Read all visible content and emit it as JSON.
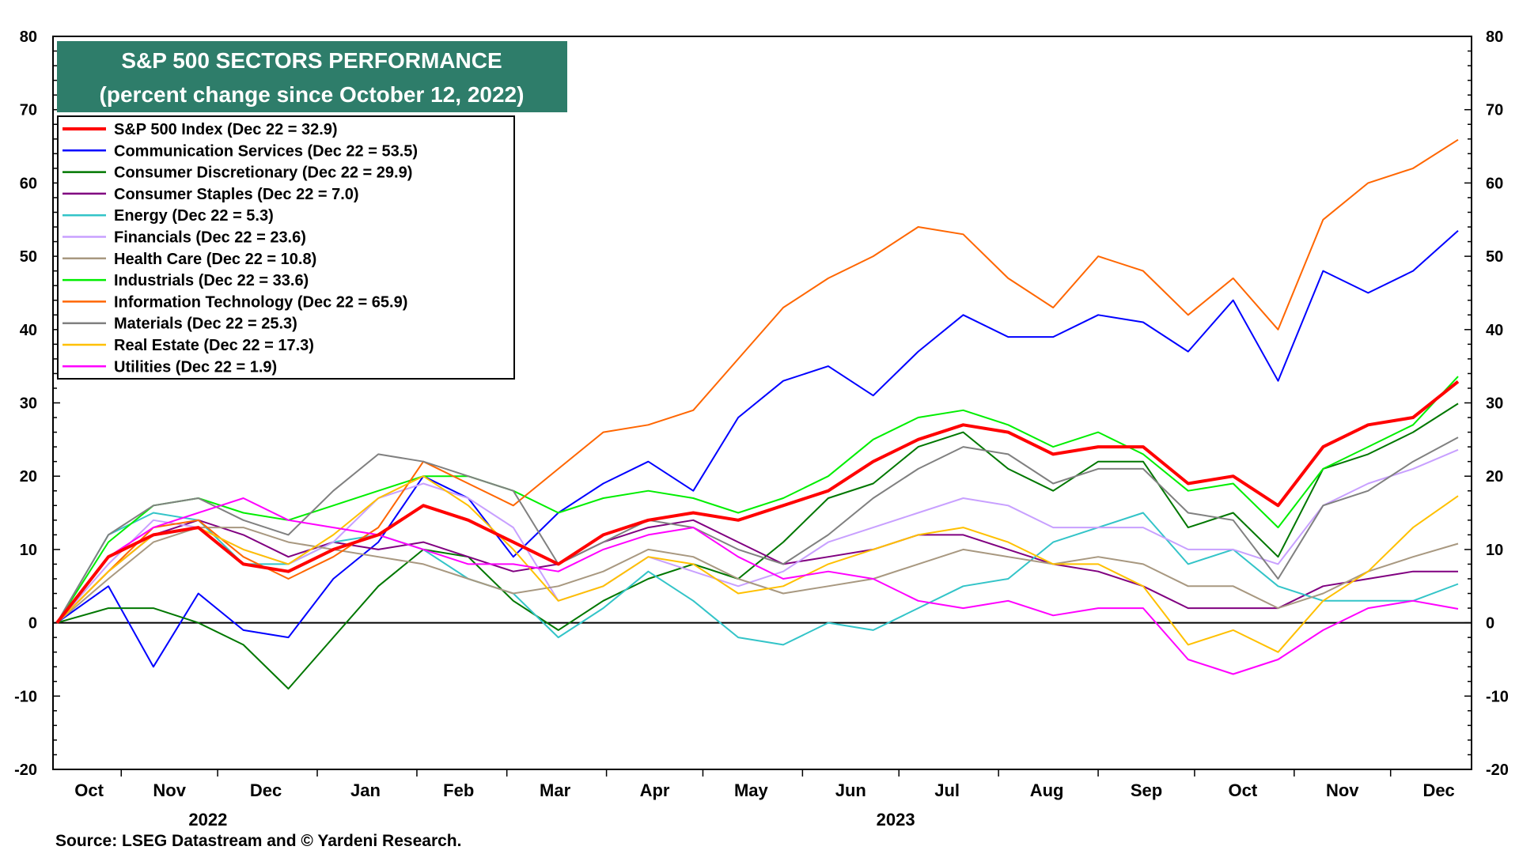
{
  "chart_data": {
    "type": "line",
    "title": "S&P 500 SECTORS PERFORMANCE",
    "subtitle": "(percent change since October 12, 2022)",
    "ylim": [
      -20,
      80
    ],
    "yticks": [
      -20,
      -10,
      0,
      10,
      20,
      30,
      40,
      50,
      60,
      70,
      80
    ],
    "grid": false,
    "legend_position": "top-left",
    "x_axis": {
      "type": "date",
      "start": "2022-10-12",
      "end": "2023-12-22",
      "month_labels": [
        {
          "label": "Oct",
          "date": "2022-10-22"
        },
        {
          "label": "Nov",
          "date": "2022-11-16"
        },
        {
          "label": "Dec",
          "date": "2022-12-16"
        },
        {
          "label": "Jan",
          "date": "2023-01-16"
        },
        {
          "label": "Feb",
          "date": "2023-02-14"
        },
        {
          "label": "Mar",
          "date": "2023-03-16"
        },
        {
          "label": "Apr",
          "date": "2023-04-16"
        },
        {
          "label": "May",
          "date": "2023-05-16"
        },
        {
          "label": "Jun",
          "date": "2023-06-16"
        },
        {
          "label": "Jul",
          "date": "2023-07-16"
        },
        {
          "label": "Aug",
          "date": "2023-08-16"
        },
        {
          "label": "Sep",
          "date": "2023-09-16"
        },
        {
          "label": "Oct",
          "date": "2023-10-16"
        },
        {
          "label": "Nov",
          "date": "2023-11-16"
        },
        {
          "label": "Dec",
          "date": "2023-12-16"
        }
      ],
      "month_boundaries": [
        "2022-11-01",
        "2022-12-01",
        "2023-01-01",
        "2023-02-01",
        "2023-03-01",
        "2023-04-01",
        "2023-05-01",
        "2023-06-01",
        "2023-07-01",
        "2023-08-01",
        "2023-09-01",
        "2023-10-01",
        "2023-11-01",
        "2023-12-01"
      ],
      "year_labels": [
        {
          "label": "2022",
          "date": "2022-11-28"
        },
        {
          "label": "2023",
          "date": "2023-06-30"
        }
      ]
    },
    "x_dates": [
      "2022-10-12",
      "2022-10-28",
      "2022-11-11",
      "2022-11-25",
      "2022-12-09",
      "2022-12-23",
      "2023-01-06",
      "2023-01-20",
      "2023-02-03",
      "2023-02-17",
      "2023-03-03",
      "2023-03-17",
      "2023-03-31",
      "2023-04-14",
      "2023-04-28",
      "2023-05-12",
      "2023-05-26",
      "2023-06-09",
      "2023-06-23",
      "2023-07-07",
      "2023-07-21",
      "2023-08-04",
      "2023-08-18",
      "2023-09-01",
      "2023-09-15",
      "2023-09-29",
      "2023-10-13",
      "2023-10-27",
      "2023-11-10",
      "2023-11-24",
      "2023-12-08",
      "2023-12-22"
    ],
    "series": [
      {
        "name": "S&P 500 Index (Dec 22 = 32.9)",
        "color": "#ff0000",
        "width": 4,
        "values": [
          0,
          9,
          12,
          13,
          8,
          7,
          10,
          12,
          16,
          14,
          11,
          8,
          12,
          14,
          15,
          14,
          16,
          18,
          22,
          25,
          27,
          26,
          23,
          24,
          24,
          19,
          20,
          16,
          24,
          27,
          28,
          32.9
        ]
      },
      {
        "name": "Communication Services (Dec 22 = 53.5)",
        "color": "#0000ff",
        "width": 2,
        "values": [
          0,
          5,
          -6,
          4,
          -1,
          -2,
          6,
          11,
          20,
          17,
          9,
          15,
          19,
          22,
          18,
          28,
          33,
          35,
          31,
          37,
          42,
          39,
          39,
          42,
          41,
          37,
          44,
          33,
          48,
          45,
          48,
          53.5
        ]
      },
      {
        "name": "Consumer Discretionary (Dec 22 = 29.9)",
        "color": "#007700",
        "width": 2,
        "values": [
          0,
          2,
          2,
          0,
          -3,
          -9,
          -2,
          5,
          10,
          9,
          3,
          -1,
          3,
          6,
          8,
          6,
          11,
          17,
          19,
          24,
          26,
          21,
          18,
          22,
          22,
          13,
          15,
          9,
          21,
          23,
          26,
          29.9
        ]
      },
      {
        "name": "Consumer Staples (Dec 22 = 7.0)",
        "color": "#800080",
        "width": 2,
        "values": [
          0,
          7,
          12,
          14,
          12,
          9,
          11,
          10,
          11,
          9,
          7,
          8,
          11,
          13,
          14,
          11,
          8,
          9,
          10,
          12,
          12,
          10,
          8,
          7,
          5,
          2,
          2,
          2,
          5,
          6,
          7,
          7.0
        ]
      },
      {
        "name": "Energy (Dec 22 = 5.3)",
        "color": "#33c4c8",
        "width": 2,
        "values": [
          0,
          12,
          15,
          14,
          8,
          8,
          11,
          12,
          10,
          6,
          4,
          -2,
          2,
          7,
          3,
          -2,
          -3,
          0,
          -1,
          2,
          5,
          6,
          11,
          13,
          15,
          8,
          10,
          5,
          3,
          3,
          3,
          5.3
        ]
      },
      {
        "name": "Financials (Dec 22 = 23.6)",
        "color": "#c8a0ff",
        "width": 2,
        "values": [
          0,
          8,
          14,
          13,
          10,
          8,
          11,
          17,
          19,
          17,
          13,
          3,
          5,
          9,
          7,
          5,
          7,
          11,
          13,
          15,
          17,
          16,
          13,
          13,
          13,
          10,
          10,
          8,
          16,
          19,
          21,
          23.6
        ]
      },
      {
        "name": "Health Care (Dec 22 = 10.8)",
        "color": "#a89880",
        "width": 2,
        "values": [
          0,
          6,
          11,
          13,
          13,
          11,
          10,
          9,
          8,
          6,
          4,
          5,
          7,
          10,
          9,
          6,
          4,
          5,
          6,
          8,
          10,
          9,
          8,
          9,
          8,
          5,
          5,
          2,
          4,
          7,
          9,
          10.8
        ]
      },
      {
        "name": "Industrials (Dec 22 = 33.6)",
        "color": "#00ee00",
        "width": 2,
        "values": [
          0,
          11,
          16,
          17,
          15,
          14,
          16,
          18,
          20,
          20,
          18,
          15,
          17,
          18,
          17,
          15,
          17,
          20,
          25,
          28,
          29,
          27,
          24,
          26,
          23,
          18,
          19,
          13,
          21,
          24,
          27,
          33.6
        ]
      },
      {
        "name": "Information Technology (Dec 22 = 65.9)",
        "color": "#ff6600",
        "width": 2,
        "values": [
          0,
          7,
          13,
          14,
          9,
          6,
          9,
          13,
          22,
          19,
          16,
          21,
          26,
          27,
          29,
          36,
          43,
          47,
          50,
          54,
          53,
          47,
          43,
          50,
          48,
          42,
          47,
          40,
          55,
          60,
          62,
          65.9
        ]
      },
      {
        "name": "Materials (Dec 22 = 25.3)",
        "color": "#808080",
        "width": 2,
        "values": [
          0,
          12,
          16,
          17,
          14,
          12,
          18,
          23,
          22,
          20,
          18,
          8,
          11,
          14,
          13,
          10,
          8,
          12,
          17,
          21,
          24,
          23,
          19,
          21,
          21,
          15,
          14,
          6,
          16,
          18,
          22,
          25.3
        ]
      },
      {
        "name": "Real Estate (Dec 22 = 17.3)",
        "color": "#ffc000",
        "width": 2,
        "values": [
          0,
          7,
          12,
          13,
          10,
          8,
          12,
          17,
          20,
          16,
          10,
          3,
          5,
          9,
          8,
          4,
          5,
          8,
          10,
          12,
          13,
          11,
          8,
          8,
          5,
          -3,
          -1,
          -4,
          3,
          7,
          13,
          17.3
        ]
      },
      {
        "name": "Utilities (Dec 22 = 1.9)",
        "color": "#ff00ff",
        "width": 2,
        "values": [
          0,
          9,
          13,
          15,
          17,
          14,
          13,
          12,
          10,
          8,
          8,
          7,
          10,
          12,
          13,
          9,
          6,
          7,
          6,
          3,
          2,
          3,
          1,
          2,
          2,
          -5,
          -7,
          -5,
          -1,
          2,
          3,
          1.9
        ]
      }
    ],
    "zero_line": true
  },
  "source": "Source: LSEG Datastream and © Yardeni Research.",
  "colors": {
    "title_background": "#2e7d6a",
    "title_text": "#ffffff",
    "zero_line": "#000000"
  }
}
